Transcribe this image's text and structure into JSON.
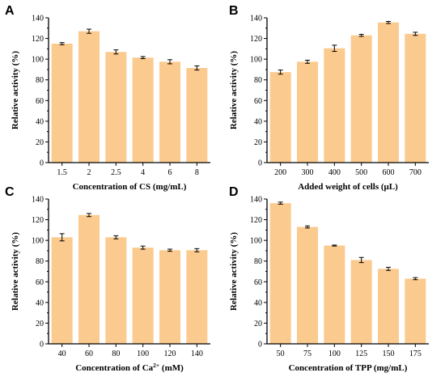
{
  "colors": {
    "bar": "#fbca8e"
  },
  "chart_data": [
    {
      "panel": "A",
      "type": "bar",
      "categories": [
        "1.5",
        "2",
        "2.5",
        "4",
        "6",
        "8"
      ],
      "values": [
        115,
        127,
        107,
        101.5,
        97.5,
        91.5
      ],
      "errors": [
        1,
        2,
        2,
        1,
        2,
        2
      ],
      "xlabel": "Concentration of CS (mg/mL)",
      "xlabel_parts": [
        {
          "t": "Concentration of CS (mg/mL)"
        }
      ],
      "ylabel": "Relative activity (%)",
      "ylim": [
        0,
        140
      ],
      "yticks": [
        0,
        20,
        40,
        60,
        80,
        100,
        120,
        140
      ]
    },
    {
      "panel": "B",
      "type": "bar",
      "categories": [
        "200",
        "300",
        "400",
        "500",
        "600",
        "700"
      ],
      "values": [
        87.5,
        97.5,
        110.5,
        123,
        135.5,
        124.5
      ],
      "errors": [
        2,
        1.5,
        3,
        1,
        1,
        1.5
      ],
      "xlabel": "Added weight of cells (μL)",
      "xlabel_parts": [
        {
          "t": "Added weight of cells (μL)"
        }
      ],
      "ylabel": "Relative activity (%)",
      "ylim": [
        0,
        140
      ],
      "yticks": [
        0,
        20,
        40,
        60,
        80,
        100,
        120,
        140
      ]
    },
    {
      "panel": "C",
      "type": "bar",
      "categories": [
        "40",
        "60",
        "80",
        "100",
        "120",
        "140"
      ],
      "values": [
        103,
        124.5,
        103,
        93,
        90.5,
        90.5
      ],
      "errors": [
        3.5,
        1.5,
        1.5,
        1.5,
        1,
        1.5
      ],
      "xlabel": "Concentration of Ca2+ (mM)",
      "xlabel_parts": [
        {
          "t": "Concentration of Ca"
        },
        {
          "t": "2+",
          "sup": true
        },
        {
          "t": " (mM)"
        }
      ],
      "ylabel": "Relative activity (%)",
      "ylim": [
        0,
        140
      ],
      "yticks": [
        0,
        20,
        40,
        60,
        80,
        100,
        120,
        140
      ]
    },
    {
      "panel": "D",
      "type": "bar",
      "categories": [
        "50",
        "75",
        "100",
        "125",
        "150",
        "175"
      ],
      "values": [
        136,
        113,
        95,
        81,
        72.5,
        63
      ],
      "errors": [
        1,
        1,
        0.5,
        2.5,
        1.5,
        1
      ],
      "xlabel": "Concentration of TPP (mg/mL)",
      "xlabel_parts": [
        {
          "t": "Concentration of TPP (mg/mL)"
        }
      ],
      "ylabel": "Relative activity (%)",
      "ylim": [
        0,
        140
      ],
      "yticks": [
        0,
        20,
        40,
        60,
        80,
        100,
        120,
        140
      ]
    }
  ]
}
